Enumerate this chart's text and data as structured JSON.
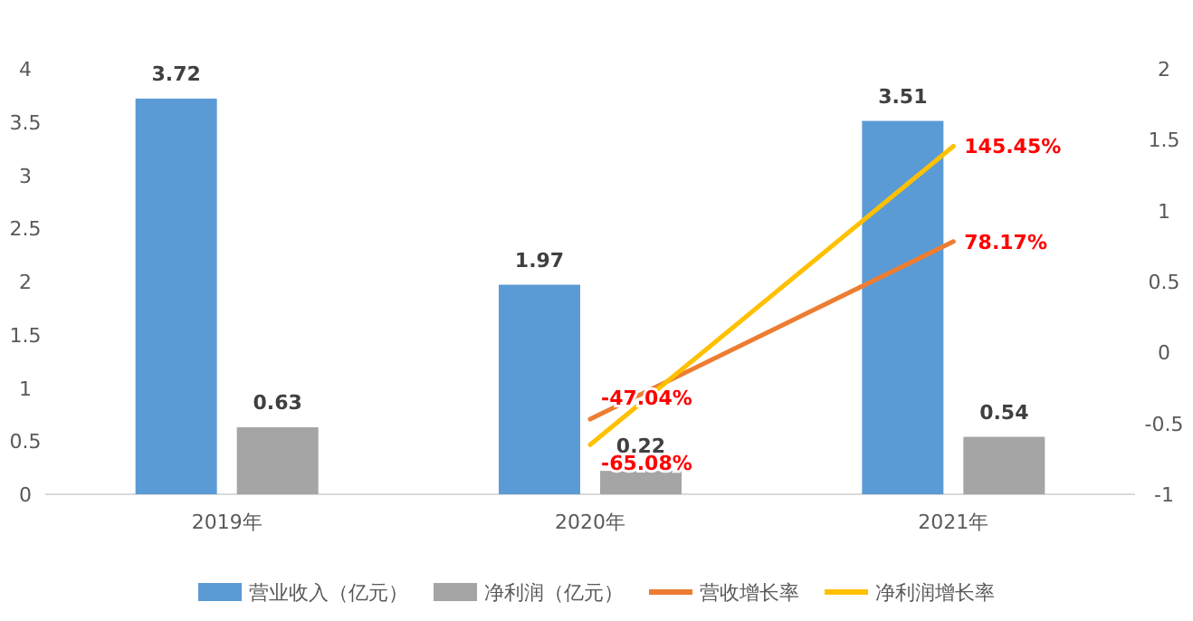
{
  "chart_data": {
    "type": "bar",
    "categories": [
      "2019年",
      "2020年",
      "2021年"
    ],
    "series": [
      {
        "name": "营业收入（亿元）",
        "color": "#5b9bd5",
        "values": [
          3.72,
          1.97,
          3.51
        ],
        "value_labels": [
          "3.72",
          "1.97",
          "3.51"
        ]
      },
      {
        "name": "净利润（亿元）",
        "color": "#a5a5a5",
        "values": [
          0.63,
          0.22,
          0.54
        ],
        "value_labels": [
          "0.63",
          "0.22",
          "0.54"
        ]
      },
      {
        "name": "营收增长率",
        "type": "line",
        "axis": "y2",
        "color": "#ed7d31",
        "values": [
          null,
          -0.4704,
          0.7817
        ],
        "value_labels": [
          null,
          "-47.04%",
          "78.17%"
        ]
      },
      {
        "name": "净利润增长率",
        "type": "line",
        "axis": "y2",
        "color": "#ffc000",
        "values": [
          null,
          -0.6508,
          1.4545
        ],
        "value_labels": [
          null,
          "-65.08%",
          "145.45%"
        ]
      }
    ],
    "ylim": [
      0,
      4
    ],
    "yticks": [
      0,
      0.5,
      1,
      1.5,
      2,
      2.5,
      3,
      3.5,
      4
    ],
    "y2lim": [
      -1,
      2
    ],
    "y2ticks": [
      -1,
      -0.5,
      0,
      0.5,
      1,
      1.5,
      2
    ],
    "legend": "bottom",
    "marker": "none",
    "line_style": "solid"
  }
}
